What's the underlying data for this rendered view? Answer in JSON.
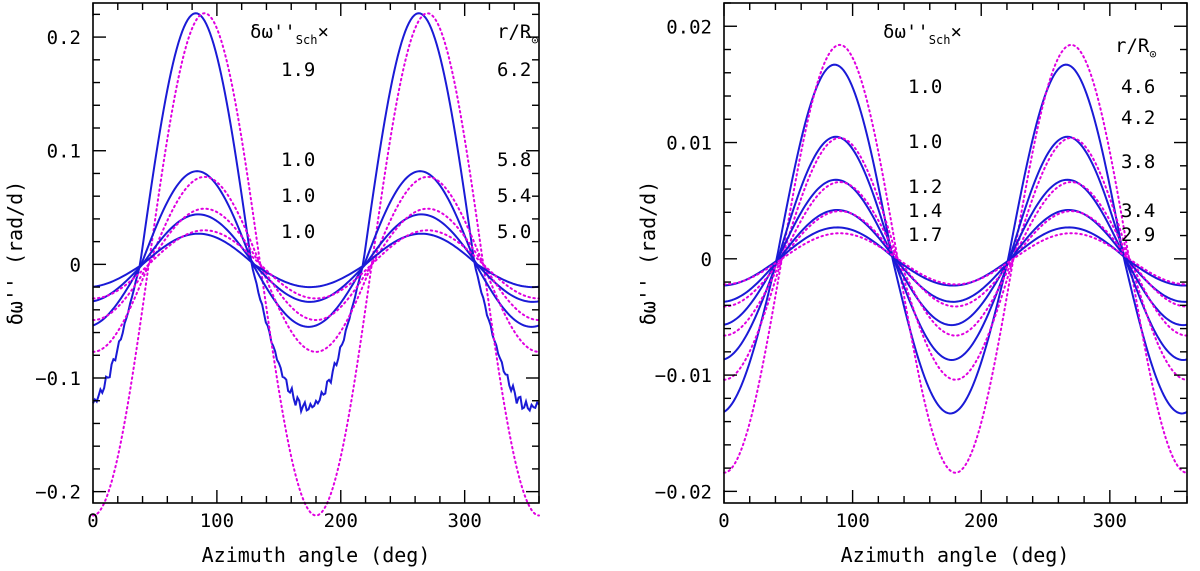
{
  "chart_data": [
    {
      "type": "line",
      "title": "",
      "xlabel": "Azimuth angle (deg)",
      "ylabel": "δω'' (rad/d)",
      "xlim": [
        0,
        360
      ],
      "ylim": [
        -0.21,
        0.23
      ],
      "xticks": [
        0,
        100,
        200,
        300
      ],
      "xtick_labels": [
        "0",
        "100",
        "200",
        "300"
      ],
      "yticks": [
        -0.2,
        -0.1,
        0,
        0.1,
        0.2
      ],
      "ytick_labels": [
        "−0.2",
        "−0.1",
        "0",
        "0.1",
        "0.2"
      ],
      "zeros": [
        43,
        130,
        224,
        314
      ],
      "series": [
        {
          "name": "model r/R⊙ 6.2",
          "style": "solid",
          "color": "#1a1ad6",
          "amp_pos": 0.221,
          "amp_neg": 0.126,
          "phase": 83,
          "ripple": true
        },
        {
          "name": "Sch r/R⊙ 6.2",
          "style": "dotted",
          "color": "#e000e0",
          "amp_pos": 0.221,
          "amp_neg": 0.221,
          "phase": 90
        },
        {
          "name": "model r/R⊙ 5.8",
          "style": "solid",
          "color": "#1a1ad6",
          "amp_pos": 0.082,
          "amp_neg": 0.055,
          "phase": 84
        },
        {
          "name": "Sch r/R⊙ 5.8",
          "style": "dotted",
          "color": "#e000e0",
          "amp_pos": 0.077,
          "amp_neg": 0.077,
          "phase": 90
        },
        {
          "name": "model r/R⊙ 5.4",
          "style": "solid",
          "color": "#1a1ad6",
          "amp_pos": 0.044,
          "amp_neg": 0.033,
          "phase": 85
        },
        {
          "name": "Sch r/R⊙ 5.4",
          "style": "dotted",
          "color": "#e000e0",
          "amp_pos": 0.049,
          "amp_neg": 0.049,
          "phase": 90
        },
        {
          "name": "model r/R⊙ 5.0",
          "style": "solid",
          "color": "#1a1ad6",
          "amp_pos": 0.027,
          "amp_neg": 0.02,
          "phase": 85
        },
        {
          "name": "Sch r/R⊙ 5.0",
          "style": "dotted",
          "color": "#e000e0",
          "amp_pos": 0.03,
          "amp_neg": 0.03,
          "phase": 90
        }
      ],
      "annotations": {
        "header_scale": "δω''",
        "header_scale_sub": "Sch",
        "header_scale_suffix": "×",
        "header_r": "r/R",
        "header_r_sym": "⊙",
        "scale_values": [
          "1.9",
          "1.0",
          "1.0",
          "1.0"
        ],
        "r_values": [
          "6.2",
          "5.8",
          "5.4",
          "5.0"
        ]
      }
    },
    {
      "type": "line",
      "title": "",
      "xlabel": "Azimuth angle (deg)",
      "ylabel": "δω'' (rad/d)",
      "xlim": [
        0,
        360
      ],
      "ylim": [
        -0.021,
        0.022
      ],
      "xticks": [
        0,
        100,
        200,
        300
      ],
      "xtick_labels": [
        "0",
        "100",
        "200",
        "300"
      ],
      "yticks": [
        -0.02,
        -0.01,
        0,
        0.01,
        0.02
      ],
      "ytick_labels": [
        "−0.02",
        "−0.01",
        "0",
        "0.01",
        "0.02"
      ],
      "zeros": [
        45,
        135,
        225,
        315
      ],
      "series": [
        {
          "name": "model r/R⊙ 4.6",
          "style": "solid",
          "color": "#1a1ad6",
          "amp_pos": 0.0167,
          "amp_neg": 0.0133,
          "phase": 86
        },
        {
          "name": "Sch r/R⊙ 4.6",
          "style": "dotted",
          "color": "#e000e0",
          "amp_pos": 0.0184,
          "amp_neg": 0.0184,
          "phase": 90
        },
        {
          "name": "model r/R⊙ 4.2",
          "style": "solid",
          "color": "#1a1ad6",
          "amp_pos": 0.0105,
          "amp_neg": 0.0087,
          "phase": 87
        },
        {
          "name": "Sch r/R⊙ 4.2",
          "style": "dotted",
          "color": "#e000e0",
          "amp_pos": 0.0104,
          "amp_neg": 0.0104,
          "phase": 90
        },
        {
          "name": "model r/R⊙ 3.8",
          "style": "solid",
          "color": "#1a1ad6",
          "amp_pos": 0.0068,
          "amp_neg": 0.0057,
          "phase": 87
        },
        {
          "name": "Sch r/R⊙ 3.8",
          "style": "dotted",
          "color": "#e000e0",
          "amp_pos": 0.0066,
          "amp_neg": 0.0066,
          "phase": 90
        },
        {
          "name": "model r/R⊙ 3.4",
          "style": "solid",
          "color": "#1a1ad6",
          "amp_pos": 0.0042,
          "amp_neg": 0.0037,
          "phase": 88
        },
        {
          "name": "Sch r/R⊙ 3.4",
          "style": "dotted",
          "color": "#e000e0",
          "amp_pos": 0.0041,
          "amp_neg": 0.0041,
          "phase": 90
        },
        {
          "name": "model r/R⊙ 2.9",
          "style": "solid",
          "color": "#1a1ad6",
          "amp_pos": 0.0027,
          "amp_neg": 0.0023,
          "phase": 88
        },
        {
          "name": "Sch r/R⊙ 2.9",
          "style": "dotted",
          "color": "#e000e0",
          "amp_pos": 0.0022,
          "amp_neg": 0.0022,
          "phase": 90
        }
      ],
      "annotations": {
        "header_scale": "δω''",
        "header_scale_sub": "Sch",
        "header_scale_suffix": "×",
        "header_r": "r/R",
        "header_r_sym": "⊙",
        "scale_values": [
          "1.0",
          "1.0",
          "1.2",
          "1.4",
          "1.7"
        ],
        "r_values": [
          "4.6",
          "4.2",
          "3.8",
          "3.4",
          "2.9"
        ]
      }
    }
  ]
}
